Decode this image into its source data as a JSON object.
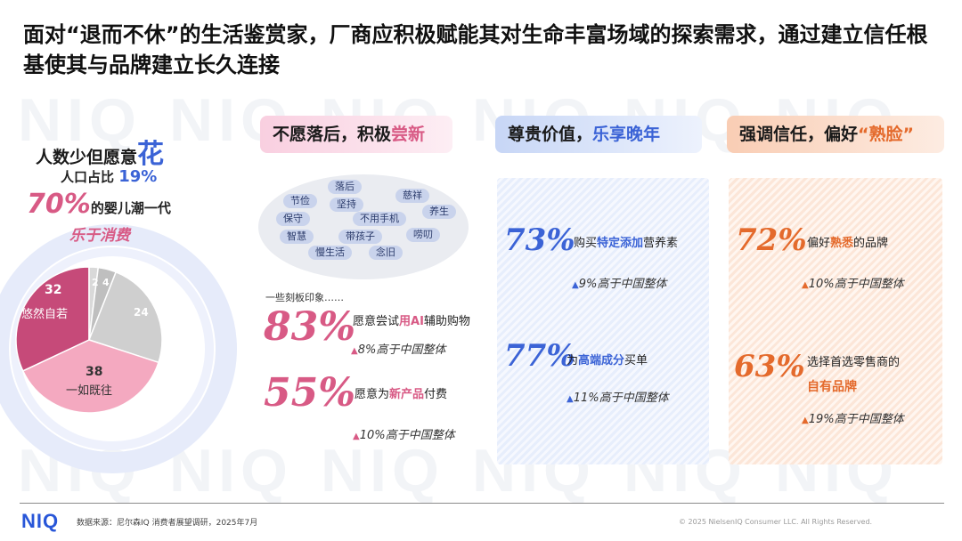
{
  "watermark": "NIQ",
  "title": "面对“退而不休”的生活鉴赏家，厂商应积极赋能其对生命丰富场域的探索需求，通过建立信任根基使其与品牌建立长久连接",
  "left": {
    "line1_pre": "人数少但愿意",
    "line1_big": "花",
    "line2_pre": "人口占比",
    "line2_pct": "19%",
    "line3_pct": "70%",
    "line3_post": "的婴儿潮一代",
    "line4": "乐于消费",
    "pie": {
      "slices": [
        {
          "value": 32,
          "label": "悠然自若",
          "color": "#c64a79"
        },
        {
          "value": 2,
          "label": "",
          "color": "#d9d9d9"
        },
        {
          "value": 4,
          "label": "",
          "color": "#bfbfbf"
        },
        {
          "value": 24,
          "label": "",
          "color": "#cfcfcf"
        },
        {
          "value": 38,
          "label": "一如既往",
          "color": "#f4a9c0"
        }
      ]
    }
  },
  "col1": {
    "header_pre": "不愿落后，积极",
    "header_acc": "尝新",
    "tags": [
      "落后",
      "节俭",
      "慈祥",
      "保守",
      "坚持",
      "不用手机",
      "养生",
      "智慧",
      "带孩子",
      "唠叨",
      "慢生活",
      "念旧"
    ],
    "note": "一些刻板印象……",
    "stat1_value": "83%",
    "stat1_pre": "愿意尝试",
    "stat1_acc": "用AI",
    "stat1_post": "辅助购物",
    "stat1_delta": "8%高于中国整体",
    "stat2_value": "55%",
    "stat2_pre": "愿意为",
    "stat2_acc": "新产品",
    "stat2_post": "付费",
    "stat2_delta": "10%高于中国整体"
  },
  "col2": {
    "header_pre": "尊贵价值，",
    "header_acc": "乐享晚年",
    "stat1_value": "73%",
    "stat1_pre": "购买",
    "stat1_acc": "特定添加",
    "stat1_post": "营养素",
    "stat1_delta": "9%高于中国整体",
    "stat2_value": "77%",
    "stat2_pre": "为",
    "stat2_acc": "高端成分",
    "stat2_post": "买单",
    "stat2_delta": "11%高于中国整体"
  },
  "col3": {
    "header_pre": "强调信任，偏好",
    "header_acc": "“熟脸”",
    "stat1_value": "72%",
    "stat1_pre": "偏好",
    "stat1_acc": "熟悉",
    "stat1_post": "的品牌",
    "stat1_delta": "10%高于中国整体",
    "stat2_value": "63%",
    "stat2_line1": "选择首选零售商的",
    "stat2_acc": "自有品牌",
    "stat2_delta": "19%高于中国整体"
  },
  "footer": {
    "logo": "NIQ",
    "source": "数据来源：尼尔森IQ 消费者展望调研，2025年7月",
    "copyright": "© 2025 NielsenIQ Consumer LLC. All Rights Reserved."
  },
  "colors": {
    "pink": "#d85a85",
    "blue": "#3b63d6",
    "orange": "#e46a2c"
  },
  "icons": {
    "up_arrow": "up-arrow-icon"
  }
}
